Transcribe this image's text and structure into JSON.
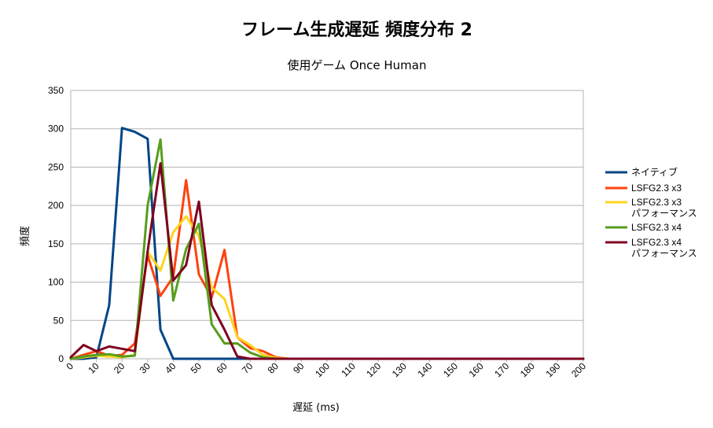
{
  "chart_data": {
    "type": "line",
    "title": "フレーム生成遅延 頻度分布 2",
    "subtitle": "使用ゲーム  Once Human",
    "xlabel": "遅延 (ms)",
    "ylabel": "頻度",
    "xlim": [
      0,
      200
    ],
    "ylim": [
      0,
      350
    ],
    "x_ticks": [
      0,
      10,
      20,
      30,
      40,
      50,
      60,
      70,
      80,
      90,
      100,
      110,
      120,
      130,
      140,
      150,
      160,
      170,
      180,
      190,
      200
    ],
    "y_ticks": [
      0,
      50,
      100,
      150,
      200,
      250,
      300,
      350
    ],
    "grid": "horizontal",
    "legend_position": "right",
    "x": [
      0,
      5,
      10,
      15,
      20,
      25,
      30,
      35,
      40,
      45,
      50,
      55,
      60,
      65,
      70,
      75,
      80,
      85,
      90,
      95,
      100,
      105,
      110,
      115,
      120,
      125,
      130,
      135,
      140,
      145,
      150,
      155,
      160,
      165,
      170,
      175,
      180,
      185,
      190,
      195,
      200
    ],
    "series": [
      {
        "name": "ネイティブ",
        "color": "#004586",
        "values": [
          0,
          0,
          2,
          70,
          301,
          296,
          287,
          38,
          0,
          0,
          0,
          0,
          0,
          0,
          0,
          0,
          0,
          0,
          0,
          0,
          0,
          0,
          0,
          0,
          0,
          0,
          0,
          0,
          0,
          0,
          0,
          0,
          0,
          0,
          0,
          0,
          0,
          0,
          0,
          0,
          0
        ]
      },
      {
        "name": "LSFG2.3 x3",
        "color": "#ff420e",
        "values": [
          0,
          5,
          10,
          4,
          5,
          20,
          135,
          82,
          107,
          233,
          110,
          80,
          142,
          28,
          14,
          10,
          2,
          0,
          0,
          0,
          0,
          0,
          0,
          0,
          0,
          0,
          0,
          0,
          0,
          0,
          0,
          0,
          0,
          0,
          0,
          0,
          0,
          0,
          0,
          0,
          0
        ]
      },
      {
        "name": "LSFG2.3 x3\nパフォーマンス",
        "color": "#ffd320",
        "values": [
          0,
          2,
          4,
          3,
          2,
          5,
          140,
          115,
          165,
          186,
          160,
          93,
          78,
          28,
          18,
          5,
          1,
          0,
          0,
          0,
          0,
          0,
          0,
          0,
          0,
          0,
          0,
          0,
          0,
          0,
          0,
          0,
          0,
          0,
          0,
          0,
          0,
          0,
          0,
          0,
          0
        ]
      },
      {
        "name": "LSFG2.3 x4",
        "color": "#579d1c",
        "values": [
          0,
          3,
          5,
          6,
          3,
          4,
          200,
          286,
          76,
          143,
          176,
          45,
          20,
          20,
          8,
          2,
          0,
          0,
          0,
          0,
          0,
          0,
          0,
          0,
          0,
          0,
          0,
          0,
          0,
          0,
          0,
          0,
          0,
          0,
          0,
          0,
          0,
          0,
          0,
          0,
          0
        ]
      },
      {
        "name": "LSFG2.3 x4\nパフォーマンス",
        "color": "#7e0021",
        "values": [
          2,
          18,
          10,
          16,
          13,
          10,
          140,
          255,
          102,
          122,
          205,
          70,
          38,
          3,
          0,
          0,
          0,
          0,
          0,
          0,
          0,
          0,
          0,
          0,
          0,
          0,
          0,
          0,
          0,
          0,
          0,
          0,
          0,
          0,
          0,
          0,
          0,
          0,
          0,
          0,
          0
        ]
      }
    ]
  }
}
